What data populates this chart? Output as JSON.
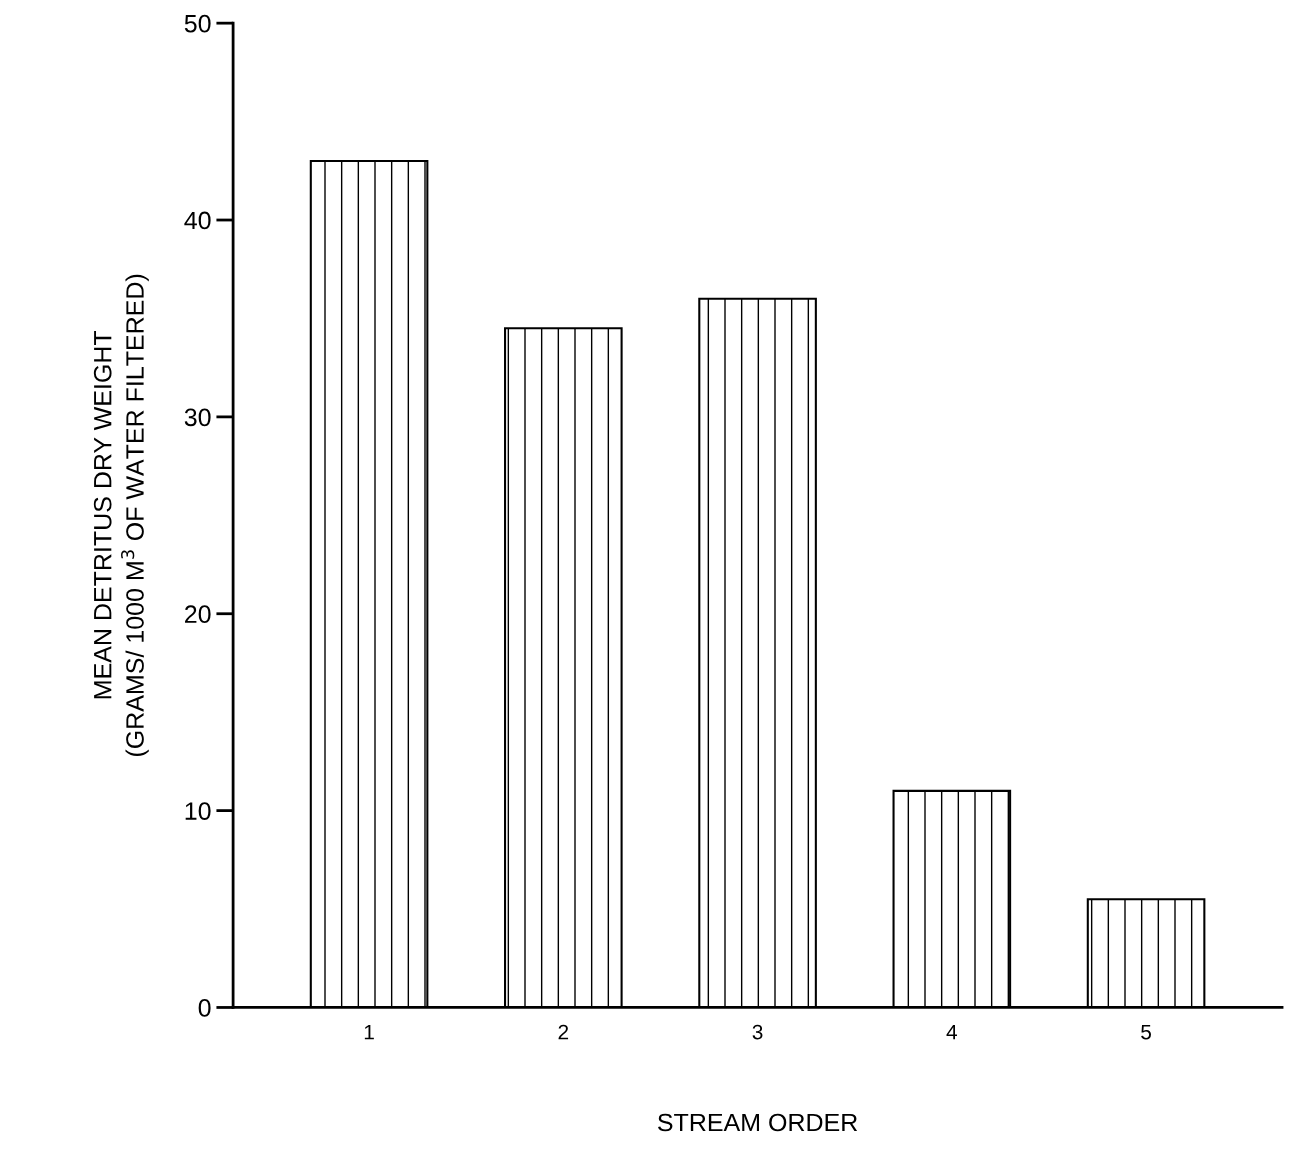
{
  "chart_data": {
    "type": "bar",
    "xlabel": "STREAM ORDER",
    "ylabel": "MEAN DETRITUS DRY WEIGHT\n(GRAMS/ 1000 M$^{3}$ OF WATER FILTERED)",
    "categories": [
      "1",
      "2",
      "3",
      "4",
      "5"
    ],
    "values": [
      43,
      34.5,
      36,
      11,
      5.5
    ],
    "color": "#000000",
    "ylim": [
      0,
      50
    ],
    "yticks": [
      0,
      10,
      20,
      30,
      40,
      50
    ],
    "grid": false
  }
}
